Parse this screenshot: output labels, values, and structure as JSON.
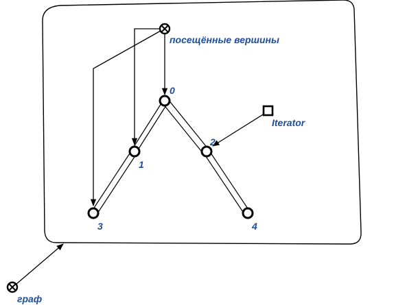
{
  "labels": {
    "visited": "посещённые вершины",
    "iterator": "Iterator",
    "graph": "граф"
  },
  "nodes": [
    {
      "id": "0",
      "label": "0"
    },
    {
      "id": "1",
      "label": "1"
    },
    {
      "id": "2",
      "label": "2"
    },
    {
      "id": "3",
      "label": "3"
    },
    {
      "id": "4",
      "label": "4"
    }
  ],
  "edges": [
    {
      "from": "0",
      "to": "1"
    },
    {
      "from": "0",
      "to": "2"
    },
    {
      "from": "1",
      "to": "3"
    },
    {
      "from": "2",
      "to": "4"
    }
  ],
  "colors": {
    "label": "#1f4e99",
    "line": "#000000"
  }
}
